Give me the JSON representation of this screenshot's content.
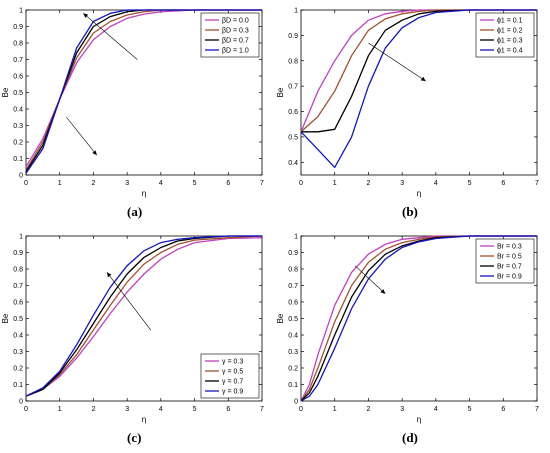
{
  "colors": {
    "c1": "#c040c0",
    "c2": "#a0522d",
    "c3": "#000000",
    "c4": "#1515c8"
  },
  "chart_data": [
    {
      "caption": "(a)",
      "type": "line",
      "xlabel": "η",
      "ylabel": "Be",
      "xlim": [
        0,
        7
      ],
      "ylim": [
        0,
        1
      ],
      "xticks": [
        "0",
        "1",
        "2",
        "3",
        "4",
        "5",
        "6",
        "7"
      ],
      "yticks": [
        "0",
        "0.1",
        "0.2",
        "0.3",
        "0.4",
        "0.5",
        "0.6",
        "0.7",
        "0.8",
        "0.9",
        "1"
      ],
      "legend_position": "top-right",
      "x": [
        0,
        0.5,
        1,
        1.5,
        2,
        2.5,
        3,
        3.5,
        4,
        5,
        6,
        7
      ],
      "series": [
        {
          "name": "βD = 0.0",
          "values": [
            0.05,
            0.22,
            0.46,
            0.68,
            0.82,
            0.9,
            0.95,
            0.975,
            0.99,
            1.0,
            1.0,
            1.0
          ]
        },
        {
          "name": "βD = 0.3",
          "values": [
            0.03,
            0.2,
            0.46,
            0.71,
            0.86,
            0.93,
            0.97,
            0.99,
            1.0,
            1.0,
            1.0,
            1.0
          ]
        },
        {
          "name": "βD = 0.7",
          "values": [
            0.02,
            0.18,
            0.46,
            0.74,
            0.9,
            0.96,
            0.99,
            1.0,
            1.0,
            1.0,
            1.0,
            1.0
          ]
        },
        {
          "name": "βD = 1.0",
          "values": [
            0.01,
            0.16,
            0.46,
            0.77,
            0.93,
            0.98,
            1.0,
            1.0,
            1.0,
            1.0,
            1.0,
            1.0
          ]
        }
      ]
    },
    {
      "caption": "(b)",
      "type": "line",
      "xlabel": "η",
      "ylabel": "Be",
      "xlim": [
        0,
        7
      ],
      "ylim": [
        0.35,
        1
      ],
      "xticks": [
        "0",
        "1",
        "2",
        "3",
        "4",
        "5",
        "6",
        "7"
      ],
      "yticks": [
        "0.4",
        "0.5",
        "0.6",
        "0.7",
        "0.8",
        "0.9",
        "1"
      ],
      "legend_position": "top-right",
      "x": [
        0,
        0.5,
        1,
        1.5,
        2,
        2.5,
        3,
        3.5,
        4,
        5,
        6,
        7
      ],
      "series": [
        {
          "name": "ϕ1 = 0.1",
          "values": [
            0.52,
            0.68,
            0.8,
            0.9,
            0.96,
            0.985,
            0.995,
            1.0,
            1.0,
            1.0,
            1.0,
            1.0
          ]
        },
        {
          "name": "ϕ1 = 0.2",
          "values": [
            0.52,
            0.58,
            0.68,
            0.82,
            0.92,
            0.965,
            0.985,
            0.995,
            1.0,
            1.0,
            1.0,
            1.0
          ]
        },
        {
          "name": "ϕ1 = 0.3",
          "values": [
            0.52,
            0.52,
            0.53,
            0.66,
            0.82,
            0.92,
            0.96,
            0.985,
            0.995,
            1.0,
            1.0,
            1.0
          ]
        },
        {
          "name": "ϕ1 = 0.4",
          "values": [
            0.52,
            0.45,
            0.38,
            0.5,
            0.7,
            0.85,
            0.93,
            0.97,
            0.99,
            1.0,
            1.0,
            1.0
          ]
        }
      ]
    },
    {
      "caption": "(c)",
      "type": "line",
      "xlabel": "η",
      "ylabel": "Be",
      "xlim": [
        0,
        7
      ],
      "ylim": [
        0,
        1
      ],
      "xticks": [
        "0",
        "1",
        "2",
        "3",
        "4",
        "5",
        "6",
        "7"
      ],
      "yticks": [
        "0",
        "0.1",
        "0.2",
        "0.3",
        "0.4",
        "0.5",
        "0.6",
        "0.7",
        "0.8",
        "0.9",
        "1"
      ],
      "legend_position": "bottom-right",
      "x": [
        0,
        0.5,
        1,
        1.5,
        2,
        2.5,
        3,
        3.5,
        4,
        4.5,
        5,
        6,
        7
      ],
      "series": [
        {
          "name": "γ = 0.3",
          "values": [
            0.03,
            0.07,
            0.15,
            0.26,
            0.39,
            0.53,
            0.66,
            0.77,
            0.86,
            0.92,
            0.96,
            0.985,
            0.99
          ]
        },
        {
          "name": "γ = 0.5",
          "values": [
            0.03,
            0.07,
            0.16,
            0.28,
            0.43,
            0.58,
            0.72,
            0.83,
            0.9,
            0.95,
            0.975,
            0.99,
            1.0
          ]
        },
        {
          "name": "γ = 0.7",
          "values": [
            0.03,
            0.07,
            0.17,
            0.31,
            0.47,
            0.63,
            0.77,
            0.87,
            0.93,
            0.97,
            0.985,
            1.0,
            1.0
          ]
        },
        {
          "name": "γ = 0.9",
          "values": [
            0.03,
            0.08,
            0.18,
            0.34,
            0.52,
            0.69,
            0.82,
            0.91,
            0.96,
            0.98,
            0.99,
            1.0,
            1.0
          ]
        }
      ]
    },
    {
      "caption": "(d)",
      "type": "line",
      "xlabel": "η",
      "ylabel": "Be",
      "xlim": [
        0,
        7
      ],
      "ylim": [
        0,
        1
      ],
      "xticks": [
        "0",
        "1",
        "2",
        "3",
        "4",
        "5",
        "6",
        "7"
      ],
      "yticks": [
        "0",
        "0.1",
        "0.2",
        "0.3",
        "0.4",
        "0.5",
        "0.6",
        "0.7",
        "0.8",
        "0.9",
        "1"
      ],
      "legend_position": "top-right",
      "x": [
        0,
        0.25,
        0.5,
        1,
        1.5,
        2,
        2.5,
        3,
        3.5,
        4,
        5,
        6,
        7
      ],
      "series": [
        {
          "name": "Br = 0.3",
          "values": [
            0.0,
            0.1,
            0.28,
            0.58,
            0.78,
            0.89,
            0.95,
            0.98,
            0.99,
            1.0,
            1.0,
            1.0,
            1.0
          ]
        },
        {
          "name": "Br = 0.5",
          "values": [
            0.0,
            0.07,
            0.2,
            0.48,
            0.7,
            0.84,
            0.92,
            0.96,
            0.98,
            0.995,
            1.0,
            1.0,
            1.0
          ]
        },
        {
          "name": "Br = 0.7",
          "values": [
            0.0,
            0.05,
            0.15,
            0.4,
            0.63,
            0.79,
            0.89,
            0.94,
            0.97,
            0.99,
            1.0,
            1.0,
            1.0
          ]
        },
        {
          "name": "Br = 0.9",
          "values": [
            0.0,
            0.03,
            0.1,
            0.32,
            0.56,
            0.74,
            0.86,
            0.93,
            0.965,
            0.985,
            1.0,
            1.0,
            1.0
          ]
        }
      ]
    }
  ]
}
